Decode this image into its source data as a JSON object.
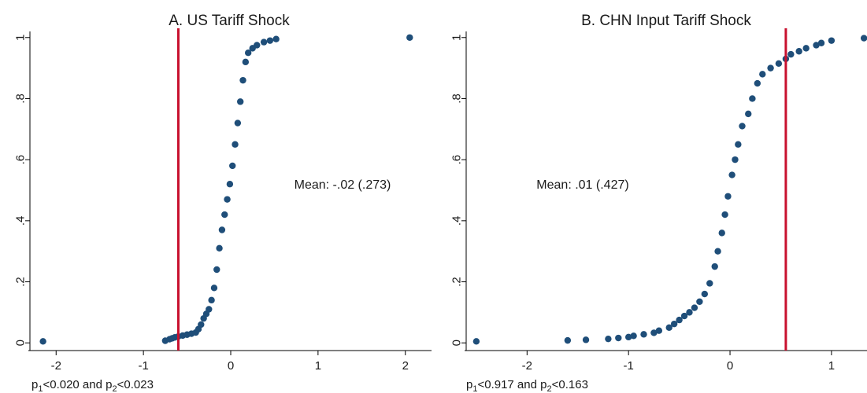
{
  "colors": {
    "marker": "#1f4e79",
    "reference_line": "#c8102e",
    "axis": "#000000"
  },
  "chart_data": [
    {
      "type": "scatter",
      "title": "A. US Tariff Shock",
      "xlabel": "",
      "ylabel": "",
      "xlim": [
        -2.3,
        2.3
      ],
      "ylim": [
        -0.02,
        1.02
      ],
      "xticks": [
        -2,
        -1,
        0,
        1,
        2
      ],
      "xtick_labels": [
        "-2",
        "-1",
        "0",
        "1",
        "2"
      ],
      "yticks": [
        0,
        0.2,
        0.4,
        0.6,
        0.8,
        1
      ],
      "ytick_labels": [
        "0",
        ".2",
        ".4",
        ".6",
        ".8",
        "1"
      ],
      "grid": false,
      "vline": -0.6,
      "annotation": "Mean: -.02 (.273)",
      "footnote_parts": [
        "p",
        "1",
        "<0.020  and  p",
        "2",
        "<0.023"
      ],
      "points": [
        [
          -2.15,
          0.005
        ],
        [
          -0.75,
          0.007
        ],
        [
          -0.7,
          0.012
        ],
        [
          -0.67,
          0.015
        ],
        [
          -0.64,
          0.018
        ],
        [
          -0.6,
          0.021
        ],
        [
          -0.55,
          0.024
        ],
        [
          -0.5,
          0.027
        ],
        [
          -0.45,
          0.03
        ],
        [
          -0.4,
          0.034
        ],
        [
          -0.37,
          0.045
        ],
        [
          -0.34,
          0.06
        ],
        [
          -0.31,
          0.08
        ],
        [
          -0.28,
          0.095
        ],
        [
          -0.25,
          0.11
        ],
        [
          -0.22,
          0.14
        ],
        [
          -0.19,
          0.18
        ],
        [
          -0.16,
          0.24
        ],
        [
          -0.13,
          0.31
        ],
        [
          -0.1,
          0.37
        ],
        [
          -0.07,
          0.42
        ],
        [
          -0.04,
          0.47
        ],
        [
          -0.01,
          0.52
        ],
        [
          0.02,
          0.58
        ],
        [
          0.05,
          0.65
        ],
        [
          0.08,
          0.72
        ],
        [
          0.11,
          0.79
        ],
        [
          0.14,
          0.86
        ],
        [
          0.17,
          0.92
        ],
        [
          0.2,
          0.95
        ],
        [
          0.25,
          0.965
        ],
        [
          0.3,
          0.975
        ],
        [
          0.38,
          0.985
        ],
        [
          0.45,
          0.99
        ],
        [
          0.52,
          0.995
        ],
        [
          2.05,
          1.0
        ]
      ]
    },
    {
      "type": "scatter",
      "title": "B. CHN Input Tariff Shock",
      "xlabel": "",
      "ylabel": "",
      "xlim": [
        -2.6,
        1.35
      ],
      "ylim": [
        -0.02,
        1.02
      ],
      "xticks": [
        -2,
        -1,
        0,
        1
      ],
      "xtick_labels": [
        "-2",
        "-1",
        "0",
        "1"
      ],
      "yticks": [
        0,
        0.2,
        0.4,
        0.6,
        0.8,
        1
      ],
      "ytick_labels": [
        "0",
        ".2",
        ".4",
        ".6",
        ".8",
        "1"
      ],
      "grid": false,
      "vline": 0.55,
      "annotation": "Mean: .01 (.427)",
      "footnote_parts": [
        "p",
        "1",
        "<0.917  and  p",
        "2",
        "<0.163"
      ],
      "points": [
        [
          -2.5,
          0.005
        ],
        [
          -1.6,
          0.008
        ],
        [
          -1.42,
          0.01
        ],
        [
          -1.2,
          0.013
        ],
        [
          -1.1,
          0.016
        ],
        [
          -1.0,
          0.019
        ],
        [
          -0.95,
          0.023
        ],
        [
          -0.85,
          0.028
        ],
        [
          -0.75,
          0.033
        ],
        [
          -0.7,
          0.04
        ],
        [
          -0.6,
          0.05
        ],
        [
          -0.55,
          0.062
        ],
        [
          -0.5,
          0.075
        ],
        [
          -0.45,
          0.088
        ],
        [
          -0.4,
          0.1
        ],
        [
          -0.35,
          0.115
        ],
        [
          -0.3,
          0.135
        ],
        [
          -0.25,
          0.16
        ],
        [
          -0.2,
          0.195
        ],
        [
          -0.15,
          0.25
        ],
        [
          -0.12,
          0.3
        ],
        [
          -0.08,
          0.36
        ],
        [
          -0.05,
          0.42
        ],
        [
          -0.02,
          0.48
        ],
        [
          0.02,
          0.55
        ],
        [
          0.05,
          0.6
        ],
        [
          0.08,
          0.65
        ],
        [
          0.12,
          0.71
        ],
        [
          0.18,
          0.75
        ],
        [
          0.22,
          0.8
        ],
        [
          0.27,
          0.85
        ],
        [
          0.32,
          0.88
        ],
        [
          0.4,
          0.9
        ],
        [
          0.48,
          0.915
        ],
        [
          0.55,
          0.93
        ],
        [
          0.6,
          0.945
        ],
        [
          0.68,
          0.955
        ],
        [
          0.75,
          0.965
        ],
        [
          0.85,
          0.975
        ],
        [
          0.9,
          0.982
        ],
        [
          1.0,
          0.99
        ],
        [
          1.32,
          0.998
        ]
      ]
    }
  ]
}
